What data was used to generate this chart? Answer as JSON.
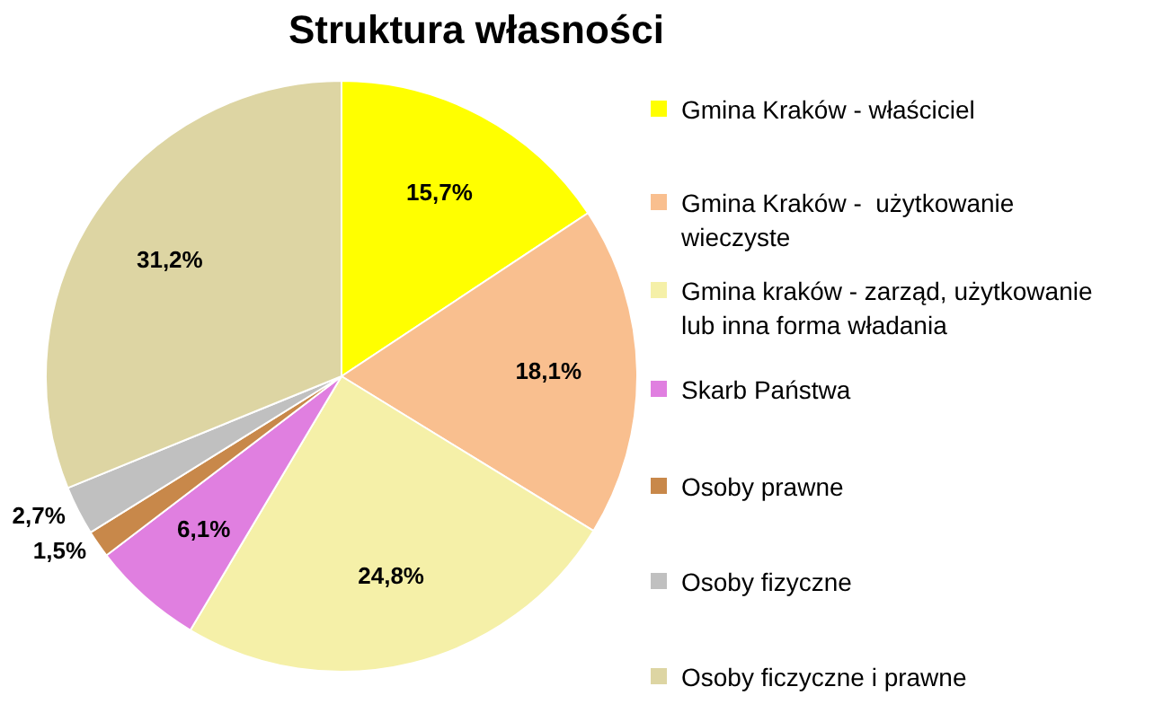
{
  "chart_data": {
    "type": "pie",
    "title": "Struktura własności",
    "categories": [
      "Gmina Kraków - właściciel",
      "Gmina Kraków -  użytkowanie wieczyste",
      "Gmina kraków - zarząd, użytkowanie lub inna forma władania",
      "Skarb Państwa",
      "Osoby prawne",
      "Osoby fizyczne",
      "Osoby ficzyczne i prawne"
    ],
    "values": [
      15.7,
      18.1,
      24.8,
      6.1,
      1.5,
      2.7,
      31.2
    ],
    "colors": [
      "#ffff00",
      "#f9bf8f",
      "#f5f0a8",
      "#e07fe0",
      "#c8884a",
      "#c0c0c0",
      "#ddd5a3"
    ],
    "value_labels": [
      "15,7%",
      "18,1%",
      "24,8%",
      "6,1%",
      "1,5%",
      "2,7%",
      "31,2%"
    ],
    "legend": "right"
  }
}
